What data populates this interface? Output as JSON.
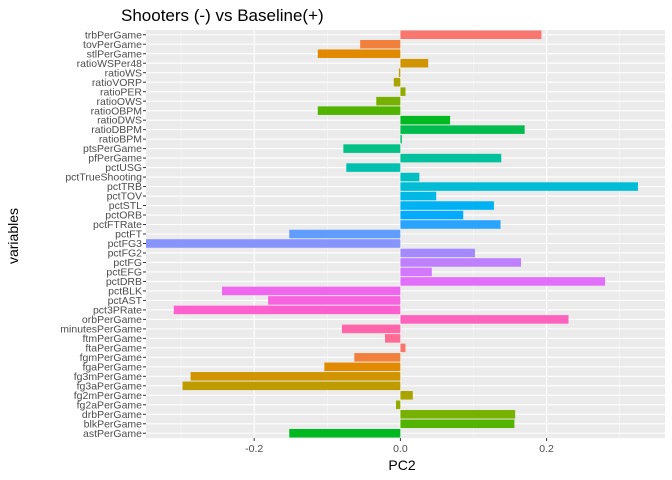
{
  "chart_data": {
    "type": "bar",
    "orientation": "horizontal",
    "title": "Shooters (-) vs Baseline(+)",
    "xlabel": "PC2",
    "ylabel": "variables",
    "xlim": [
      -0.348,
      0.362
    ],
    "xticks": [
      -0.2,
      0.0,
      0.2
    ],
    "xtick_labels": [
      "-0.2",
      "0.0",
      "0.2"
    ],
    "grid": true,
    "legend": "none",
    "categories": [
      "trbPerGame",
      "tovPerGame",
      "stlPerGame",
      "ratioWSPer48",
      "ratioWS",
      "ratioVORP",
      "ratioPER",
      "ratioOWS",
      "ratioOBPM",
      "ratioDWS",
      "ratioDBPM",
      "ratioBPM",
      "ptsPerGame",
      "pfPerGame",
      "pctUSG",
      "pctTrueShooting",
      "pctTRB",
      "pctTOV",
      "pctSTL",
      "pctORB",
      "pctFTRate",
      "pctFT",
      "pctFG3",
      "pctFG2",
      "pctFG",
      "pctEFG",
      "pctDRB",
      "pctBLK",
      "pctAST",
      "pct3PRate",
      "orbPerGame",
      "minutesPerGame",
      "ftmPerGame",
      "ftaPerGame",
      "fgmPerGame",
      "fgaPerGame",
      "fg3mPerGame",
      "fg3aPerGame",
      "fg2mPerGame",
      "fg2aPerGame",
      "drbPerGame",
      "blkPerGame",
      "astPerGame"
    ],
    "values": [
      0.193,
      -0.055,
      -0.113,
      0.038,
      -0.002,
      -0.009,
      0.007,
      -0.033,
      -0.113,
      0.068,
      0.17,
      0.002,
      -0.078,
      0.138,
      -0.074,
      0.026,
      0.325,
      0.049,
      0.128,
      0.086,
      0.137,
      -0.152,
      -0.348,
      0.102,
      0.165,
      0.043,
      0.28,
      -0.244,
      -0.181,
      -0.31,
      0.23,
      -0.08,
      -0.021,
      0.007,
      -0.063,
      -0.104,
      -0.287,
      -0.298,
      0.017,
      -0.006,
      0.157,
      0.156,
      -0.152
    ],
    "colors": [
      "#F8766D",
      "#F0803C",
      "#E18A00",
      "#D09400",
      "#BE9C00",
      "#A9A400",
      "#92AA00",
      "#78B000",
      "#53B400",
      "#00B81F",
      "#00BB4E",
      "#00BE6C",
      "#00C085",
      "#00C19B",
      "#00C1AF",
      "#00BFC2",
      "#00BCD4",
      "#00B8E5",
      "#00B2F3",
      "#00ABFD",
      "#2AA3FF",
      "#619CFF",
      "#8794FF",
      "#A58AFF",
      "#BE80FF",
      "#D277FF",
      "#E16FF9",
      "#EE67EE",
      "#F864E0",
      "#FE61CF",
      "#FF62BC",
      "#FF65A9",
      "#FF6B93",
      "#F8766D",
      "#F0803C",
      "#E18A00",
      "#D09400",
      "#BE9C00",
      "#A9A400",
      "#92AA00",
      "#78B000",
      "#53B400",
      "#00B81F"
    ]
  }
}
